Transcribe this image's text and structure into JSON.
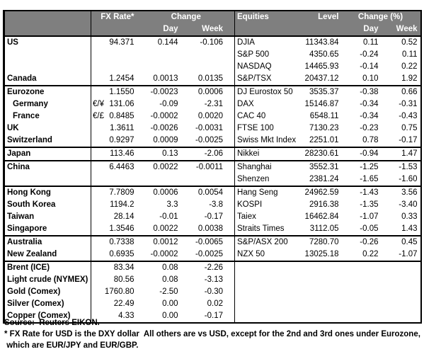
{
  "colors": {
    "header_bg": "#7f7f7f",
    "header_text": "#ffffff",
    "border": "#000000",
    "body_text": "#000000"
  },
  "table": {
    "left_header": {
      "fx_rate": "FX Rate*",
      "change": "Change",
      "day": "Day",
      "week": "Week"
    },
    "right_header": {
      "equities": "Equities",
      "level": "Level",
      "change_pct": "Change (%)",
      "day": "Day",
      "week": "Week"
    }
  },
  "rows": [
    {
      "section": false,
      "indent": false,
      "name": "US",
      "pair": "",
      "fx": "94.371",
      "day": "0.144",
      "week": "-0.106",
      "equity": "DJIA",
      "level": "11343.84",
      "eday": "0.11",
      "eweek": "0.52"
    },
    {
      "section": false,
      "indent": false,
      "name": "",
      "pair": "",
      "fx": "",
      "day": "",
      "week": "",
      "equity": "S&P 500",
      "level": "4350.65",
      "eday": "-0.24",
      "eweek": "0.11"
    },
    {
      "section": false,
      "indent": false,
      "name": "",
      "pair": "",
      "fx": "",
      "day": "",
      "week": "",
      "equity": "NASDAQ",
      "level": "14465.93",
      "eday": "-0.14",
      "eweek": "0.22"
    },
    {
      "section": false,
      "indent": false,
      "name": "Canada",
      "pair": "",
      "fx": "1.2454",
      "day": "0.0013",
      "week": "0.0135",
      "equity": "S&P/TSX",
      "level": "20437.12",
      "eday": "0.10",
      "eweek": "1.92"
    },
    {
      "section": true,
      "indent": false,
      "name": "Eurozone",
      "pair": "",
      "fx": "1.1550",
      "day": "-0.0023",
      "week": "0.0006",
      "equity": "DJ Eurostox 50",
      "level": "3535.37",
      "eday": "-0.38",
      "eweek": "0.66"
    },
    {
      "section": false,
      "indent": true,
      "name": "Germany",
      "pair": "€/¥",
      "fx": "131.06",
      "day": "-0.09",
      "week": "-2.31",
      "equity": "DAX",
      "level": "15146.87",
      "eday": "-0.34",
      "eweek": "-0.31"
    },
    {
      "section": false,
      "indent": true,
      "name": "France",
      "pair": "€/£",
      "fx": "0.8485",
      "day": "-0.0002",
      "week": "0.0020",
      "equity": "CAC 40",
      "level": "6548.11",
      "eday": "-0.34",
      "eweek": "-0.43"
    },
    {
      "section": false,
      "indent": false,
      "name": "UK",
      "pair": "",
      "fx": "1.3611",
      "day": "-0.0026",
      "week": "-0.0031",
      "equity": "FTSE 100",
      "level": "7130.23",
      "eday": "-0.23",
      "eweek": "0.75"
    },
    {
      "section": false,
      "indent": false,
      "name": "Switzerland",
      "pair": "",
      "fx": "0.9297",
      "day": "0.0009",
      "week": "-0.0025",
      "equity": "Swiss Mkt Index",
      "level": "2251.01",
      "eday": "0.78",
      "eweek": "-0.17"
    },
    {
      "section": true,
      "indent": false,
      "name": "Japan",
      "pair": "",
      "fx": "113.46",
      "day": "0.13",
      "week": "-2.06",
      "equity": "Nikkei",
      "level": "28230.61",
      "eday": "-0.94",
      "eweek": "1.47"
    },
    {
      "section": true,
      "indent": false,
      "name": "China",
      "pair": "",
      "fx": "6.4463",
      "day": "0.0022",
      "week": "-0.0011",
      "equity": "Shanghai",
      "level": "3552.31",
      "eday": "-1.25",
      "eweek": "-1.53"
    },
    {
      "section": false,
      "indent": false,
      "name": "",
      "pair": "",
      "fx": "",
      "day": "",
      "week": "",
      "equity": "Shenzen",
      "level": "2381.24",
      "eday": "-1.65",
      "eweek": "-1.60"
    },
    {
      "section": true,
      "indent": false,
      "name": "Hong Kong",
      "pair": "",
      "fx": "7.7809",
      "day": "0.0006",
      "week": "0.0054",
      "equity": "Hang Seng",
      "level": "24962.59",
      "eday": "-1.43",
      "eweek": "3.56"
    },
    {
      "section": false,
      "indent": false,
      "name": "South Korea",
      "pair": "",
      "fx": "1194.2",
      "day": "3.3",
      "week": "-3.8",
      "equity": "KOSPI",
      "level": "2916.38",
      "eday": "-1.35",
      "eweek": "-3.40"
    },
    {
      "section": false,
      "indent": false,
      "name": "Taiwan",
      "pair": "",
      "fx": "28.14",
      "day": "-0.01",
      "week": "-0.17",
      "equity": "Taiex",
      "level": "16462.84",
      "eday": "-1.07",
      "eweek": "0.33"
    },
    {
      "section": false,
      "indent": false,
      "name": "Singapore",
      "pair": "",
      "fx": "1.3546",
      "day": "0.0022",
      "week": "0.0038",
      "equity": "Straits Times",
      "level": "3112.05",
      "eday": "-0.05",
      "eweek": "1.43"
    },
    {
      "section": true,
      "indent": false,
      "name": "Australia",
      "pair": "",
      "fx": "0.7338",
      "day": "0.0012",
      "week": "-0.0065",
      "equity": "S&P/ASX 200",
      "level": "7280.70",
      "eday": "-0.26",
      "eweek": "0.45"
    },
    {
      "section": false,
      "indent": false,
      "name": "New Zealand",
      "pair": "",
      "fx": "0.6935",
      "day": "-0.0002",
      "week": "-0.0025",
      "equity": "NZX 50",
      "level": "13025.18",
      "eday": "0.22",
      "eweek": "-1.07"
    },
    {
      "section": true,
      "indent": false,
      "name": "Brent (ICE)",
      "pair": "",
      "fx": "83.34",
      "day": "0.08",
      "week": "-2.26",
      "equity": "",
      "level": "",
      "eday": "",
      "eweek": ""
    },
    {
      "section": false,
      "indent": false,
      "name": "Light crude (NYMEX)",
      "pair": "",
      "fx": "80.56",
      "day": "0.08",
      "week": "-3.13",
      "equity": "",
      "level": "",
      "eday": "",
      "eweek": ""
    },
    {
      "section": false,
      "indent": false,
      "name": "Gold (Comex)",
      "pair": "",
      "fx": "1760.80",
      "day": "-2.50",
      "week": "-0.30",
      "equity": "",
      "level": "",
      "eday": "",
      "eweek": ""
    },
    {
      "section": false,
      "indent": false,
      "name": "Silver (Comex)",
      "pair": "",
      "fx": "22.49",
      "day": "0.00",
      "week": "0.02",
      "equity": "",
      "level": "",
      "eday": "",
      "eweek": ""
    },
    {
      "section": false,
      "indent": false,
      "name": "Copper (Comex)",
      "pair": "",
      "fx": "4.33",
      "day": "0.00",
      "week": "-0.17",
      "equity": "",
      "level": "",
      "eday": "",
      "eweek": ""
    }
  ],
  "footer": {
    "source_note": "Source:  Reuters EIKON.",
    "footnote_line1": "* FX Rate for USD is the DXY dollar  All others are vs USD, except for the 2nd and 3rd ones under Eurozone,",
    "footnote_line2": " which are EUR/JPY and EUR/GBP."
  }
}
